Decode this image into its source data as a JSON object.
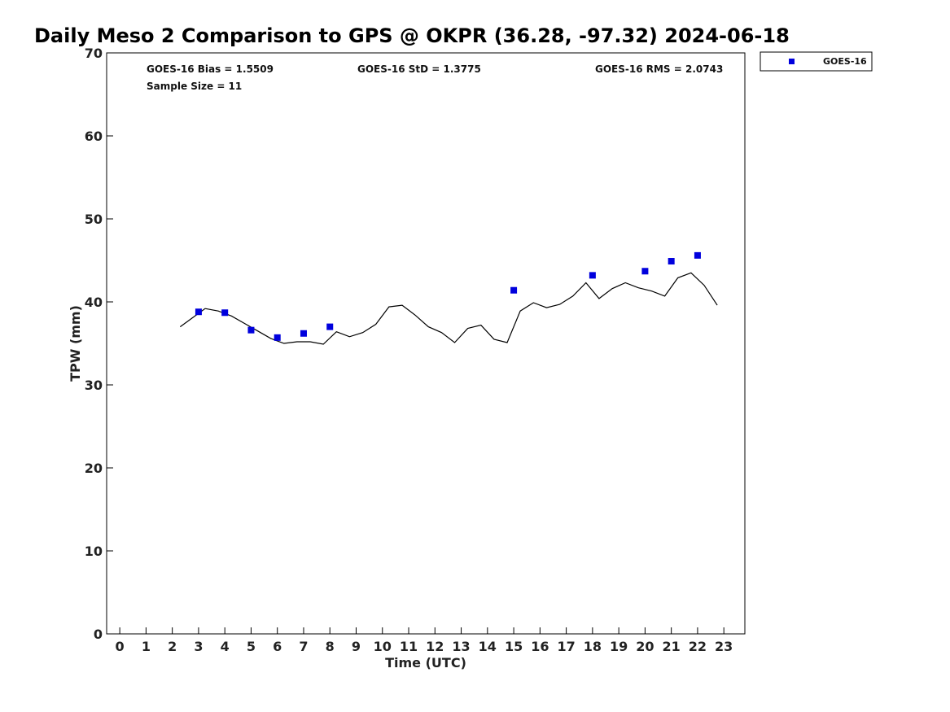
{
  "chart_data": {
    "type": "scatter",
    "title": "Daily Meso 2 Comparison to GPS @ OKPR (36.28, -97.32) 2024-06-18",
    "xlabel": "Time (UTC)",
    "ylabel": "TPW (mm)",
    "xlim": [
      -0.5,
      23.8
    ],
    "ylim": [
      0,
      70
    ],
    "x_ticks": [
      "0",
      "1",
      "2",
      "3",
      "4",
      "5",
      "6",
      "7",
      "8",
      "9",
      "10",
      "11",
      "12",
      "13",
      "14",
      "15",
      "16",
      "17",
      "18",
      "19",
      "20",
      "21",
      "22",
      "23"
    ],
    "y_ticks": [
      "0",
      "10",
      "20",
      "30",
      "40",
      "50",
      "60",
      "70"
    ],
    "grid": false,
    "legend_position": "outside-top-right",
    "stats": {
      "bias": "GOES-16 Bias = 1.5509",
      "std": "GOES-16 StD = 1.3775",
      "rms": "GOES-16 RMS = 2.0743",
      "sample_size": "Sample Size = 11"
    },
    "series": [
      {
        "kind": "line",
        "color": "#000000",
        "points": [
          [
            2.3,
            37.0
          ],
          [
            3.25,
            39.2
          ],
          [
            3.75,
            38.9
          ],
          [
            4.25,
            38.3
          ],
          [
            4.75,
            37.4
          ],
          [
            5.25,
            36.5
          ],
          [
            5.75,
            35.6
          ],
          [
            6.25,
            35.0
          ],
          [
            6.75,
            35.2
          ],
          [
            7.25,
            35.2
          ],
          [
            7.75,
            34.9
          ],
          [
            8.25,
            36.4
          ],
          [
            8.75,
            35.8
          ],
          [
            9.25,
            36.3
          ],
          [
            9.75,
            37.3
          ],
          [
            10.25,
            39.4
          ],
          [
            10.75,
            39.6
          ],
          [
            11.25,
            38.4
          ],
          [
            11.75,
            37.0
          ],
          [
            12.25,
            36.3
          ],
          [
            12.75,
            35.1
          ],
          [
            13.25,
            36.8
          ],
          [
            13.75,
            37.2
          ],
          [
            14.25,
            35.5
          ],
          [
            14.75,
            35.1
          ],
          [
            15.25,
            38.9
          ],
          [
            15.75,
            39.9
          ],
          [
            16.25,
            39.3
          ],
          [
            16.75,
            39.7
          ],
          [
            17.25,
            40.7
          ],
          [
            17.75,
            42.3
          ],
          [
            18.25,
            40.4
          ],
          [
            18.75,
            41.6
          ],
          [
            19.25,
            42.3
          ],
          [
            19.75,
            41.7
          ],
          [
            20.25,
            41.3
          ],
          [
            20.75,
            40.7
          ],
          [
            21.25,
            42.9
          ],
          [
            21.75,
            43.5
          ],
          [
            22.25,
            42.0
          ],
          [
            22.75,
            39.6
          ]
        ]
      },
      {
        "kind": "scatter",
        "name": "GOES-16",
        "color": "#0000dd",
        "points": [
          [
            3,
            38.8
          ],
          [
            4,
            38.7
          ],
          [
            5,
            36.6
          ],
          [
            6,
            35.7
          ],
          [
            7,
            36.2
          ],
          [
            8,
            37.0
          ],
          [
            15,
            41.4
          ],
          [
            18,
            43.2
          ],
          [
            20,
            43.7
          ],
          [
            21,
            44.9
          ],
          [
            22,
            45.6
          ]
        ]
      }
    ]
  }
}
